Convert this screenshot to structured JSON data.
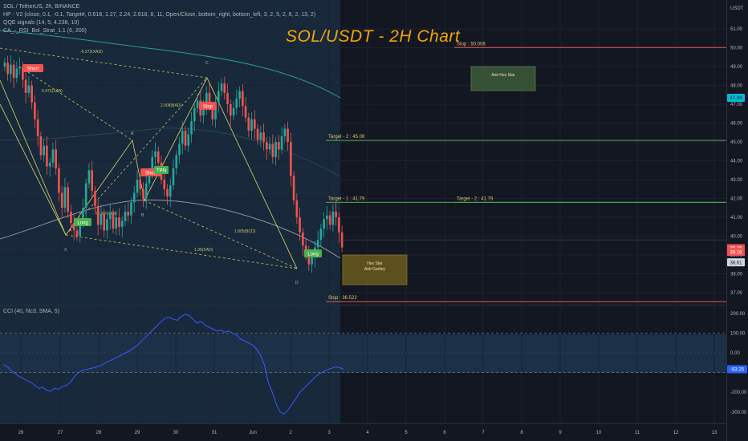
{
  "header": {
    "symbol_line": "SOL / TetherUS, 2h, BINANCE",
    "indicator_1": "HP - V2 (close, 0.1, -0.1, Target#, 0.618, 1.27, 2.24, 2.618, 8, 11, Open/Close, bottom_right, bottom_left, 3, 2, 5, 2, 8, 2, 13, 2)",
    "indicator_2": "QQE signals (14, 5, 4.238, 10)",
    "indicator_3": "CA_-_RSI_Bol_Strat_1.1 (6, 200)"
  },
  "title": "SOL/USDT - 2H Chart",
  "cci_legend": "CCI (40, hlc3, SMA, 5)",
  "price_axis": {
    "currency": "USDT",
    "ticks": [
      "51.00",
      "50.00",
      "49.00",
      "48.00",
      "47.00",
      "46.00",
      "45.00",
      "44.00",
      "43.00",
      "42.00",
      "41.00",
      "40.00",
      "39.00",
      "38.00",
      "37.00"
    ],
    "badges": [
      {
        "value": 47.34,
        "label": "47.34",
        "color": "#00bcd4",
        "text": "#131722"
      },
      {
        "value": 39.36,
        "label": "39.36",
        "color": "#ef5350",
        "text": "#ffffff"
      },
      {
        "value": 39.16,
        "label": "39.16",
        "color": "#ef5350",
        "text": "#ffffff"
      },
      {
        "value": 38.61,
        "label": "38.61",
        "color": "#d1d4dc",
        "text": "#131722"
      }
    ]
  },
  "cci_axis": {
    "ticks": [
      "200.00",
      "100.00",
      "0.00",
      "-200.00",
      "-300.00"
    ],
    "badge": {
      "value": -83.25,
      "label": "-83.25"
    }
  },
  "x_axis": {
    "labels": [
      "26",
      "27",
      "28",
      "29",
      "30",
      "31",
      "Jun",
      "2",
      "3",
      "4",
      "5",
      "6",
      "7",
      "8",
      "9",
      "10",
      "11",
      "12",
      "13"
    ]
  },
  "levels": [
    {
      "id": "stop-top",
      "label": "Stop : 50.008",
      "price": 50.008,
      "color": "#ef5350",
      "from": 566
    },
    {
      "id": "target2-a",
      "label": "Target - 2 : 45.08",
      "price": 45.08,
      "color": "#4caf50",
      "from": 406
    },
    {
      "id": "target1",
      "label": "Target - 1 : 41.79",
      "price": 41.79,
      "color": "#4caf50",
      "from": 406
    },
    {
      "id": "target2-b",
      "label": "Target - 2 : 41.79",
      "price": 41.79,
      "color": "#4caf50",
      "from": 566
    },
    {
      "id": "stop-bottom",
      "label": "Stop : 36.522",
      "price": 36.522,
      "color": "#ef5350",
      "from": 406
    }
  ],
  "pattern_boxes": [
    {
      "id": "anti-hex-star",
      "lines": [
        "Anti Hex Star"
      ],
      "fill": "#3d5a3a",
      "border": "#6b8e4e"
    },
    {
      "id": "hex-star-anti-gartley",
      "lines": [
        "Hex Star",
        "Anti Gartley"
      ],
      "fill": "#6b5a1f",
      "border": "#a0862a"
    }
  ],
  "signals": [
    {
      "label": "Short",
      "color": "#ef5350"
    },
    {
      "label": "Long",
      "color": "#4caf50"
    },
    {
      "label": "Short",
      "color": "#ef5350"
    },
    {
      "label": "TPN",
      "color": "#4caf50"
    },
    {
      "label": "Stop",
      "color": "#ef5350"
    },
    {
      "label": "Long",
      "color": "#4caf50"
    }
  ],
  "point_labels": [
    "X",
    "A",
    "B",
    "C",
    "D",
    "X",
    "A",
    "B",
    "C",
    "D"
  ],
  "fib_labels": [
    "-0.272(XAD)",
    "0.472(XAB)",
    "2.008(BAD)",
    "0.707(XAB)",
    "1.805(BCD)",
    "1.35(XAD)"
  ],
  "chart_data": {
    "type": "candlestick",
    "title": "SOL/USDT - 2H Chart",
    "price_range": [
      36.3,
      52.5
    ],
    "cci_range": [
      -350,
      250
    ],
    "closes": [
      49.2,
      48.6,
      49.1,
      48.4,
      48.9,
      49.0,
      48.3,
      47.6,
      48.0,
      47.1,
      46.2,
      45.3,
      44.3,
      44.8,
      43.7,
      43.9,
      44.6,
      43.6,
      42.3,
      41.5,
      42.6,
      41.3,
      40.7,
      40.3,
      40.0,
      40.9,
      41.5,
      42.8,
      43.5,
      42.4,
      41.6,
      40.6,
      41.2,
      40.3,
      40.9,
      41.2,
      40.4,
      41.0,
      40.5,
      40.8,
      41.3,
      41.1,
      41.8,
      42.3,
      43.0,
      42.5,
      42.0,
      42.8,
      43.4,
      44.2,
      44.5,
      43.9,
      43.0,
      42.5,
      42.1,
      42.7,
      43.6,
      44.3,
      44.9,
      45.6,
      44.8,
      45.4,
      46.1,
      46.8,
      47.2,
      46.4,
      47.0,
      47.6,
      46.9,
      46.2,
      47.1,
      47.7,
      48.1,
      47.6,
      47.0,
      46.4,
      46.8,
      47.3,
      47.7,
      46.9,
      46.3,
      45.6,
      46.2,
      45.7,
      45.1,
      45.5,
      45.0,
      44.6,
      44.9,
      44.2,
      45.0,
      44.6,
      45.3,
      45.7,
      45.0,
      43.2,
      41.9,
      41.0,
      40.2,
      39.5,
      39.0,
      38.5,
      38.9,
      39.4,
      39.8,
      40.4,
      40.9,
      41.1,
      40.6,
      41.3,
      41.0,
      40.2,
      39.4
    ],
    "cci": [
      -60,
      -70,
      -90,
      -105,
      -120,
      -130,
      -140,
      -150,
      -165,
      -180,
      -175,
      -190,
      -195,
      -180,
      -185,
      -170,
      -165,
      -150,
      -120,
      -100,
      -90,
      -85,
      -80,
      -75,
      -70,
      -60,
      -50,
      -40,
      -30,
      -20,
      -10,
      0,
      10,
      25,
      40,
      60,
      80,
      100,
      120,
      140,
      160,
      175,
      180,
      170,
      165,
      185,
      195,
      190,
      170,
      150,
      160,
      140,
      130,
      120,
      110,
      115,
      105,
      110,
      100,
      90,
      70,
      60,
      50,
      40,
      20,
      -10,
      -60,
      -150,
      -200,
      -260,
      -300,
      -310,
      -290,
      -260,
      -230,
      -200,
      -180,
      -160,
      -140,
      -120,
      -105,
      -95,
      -85,
      -78,
      -72,
      -75,
      -83
    ]
  }
}
